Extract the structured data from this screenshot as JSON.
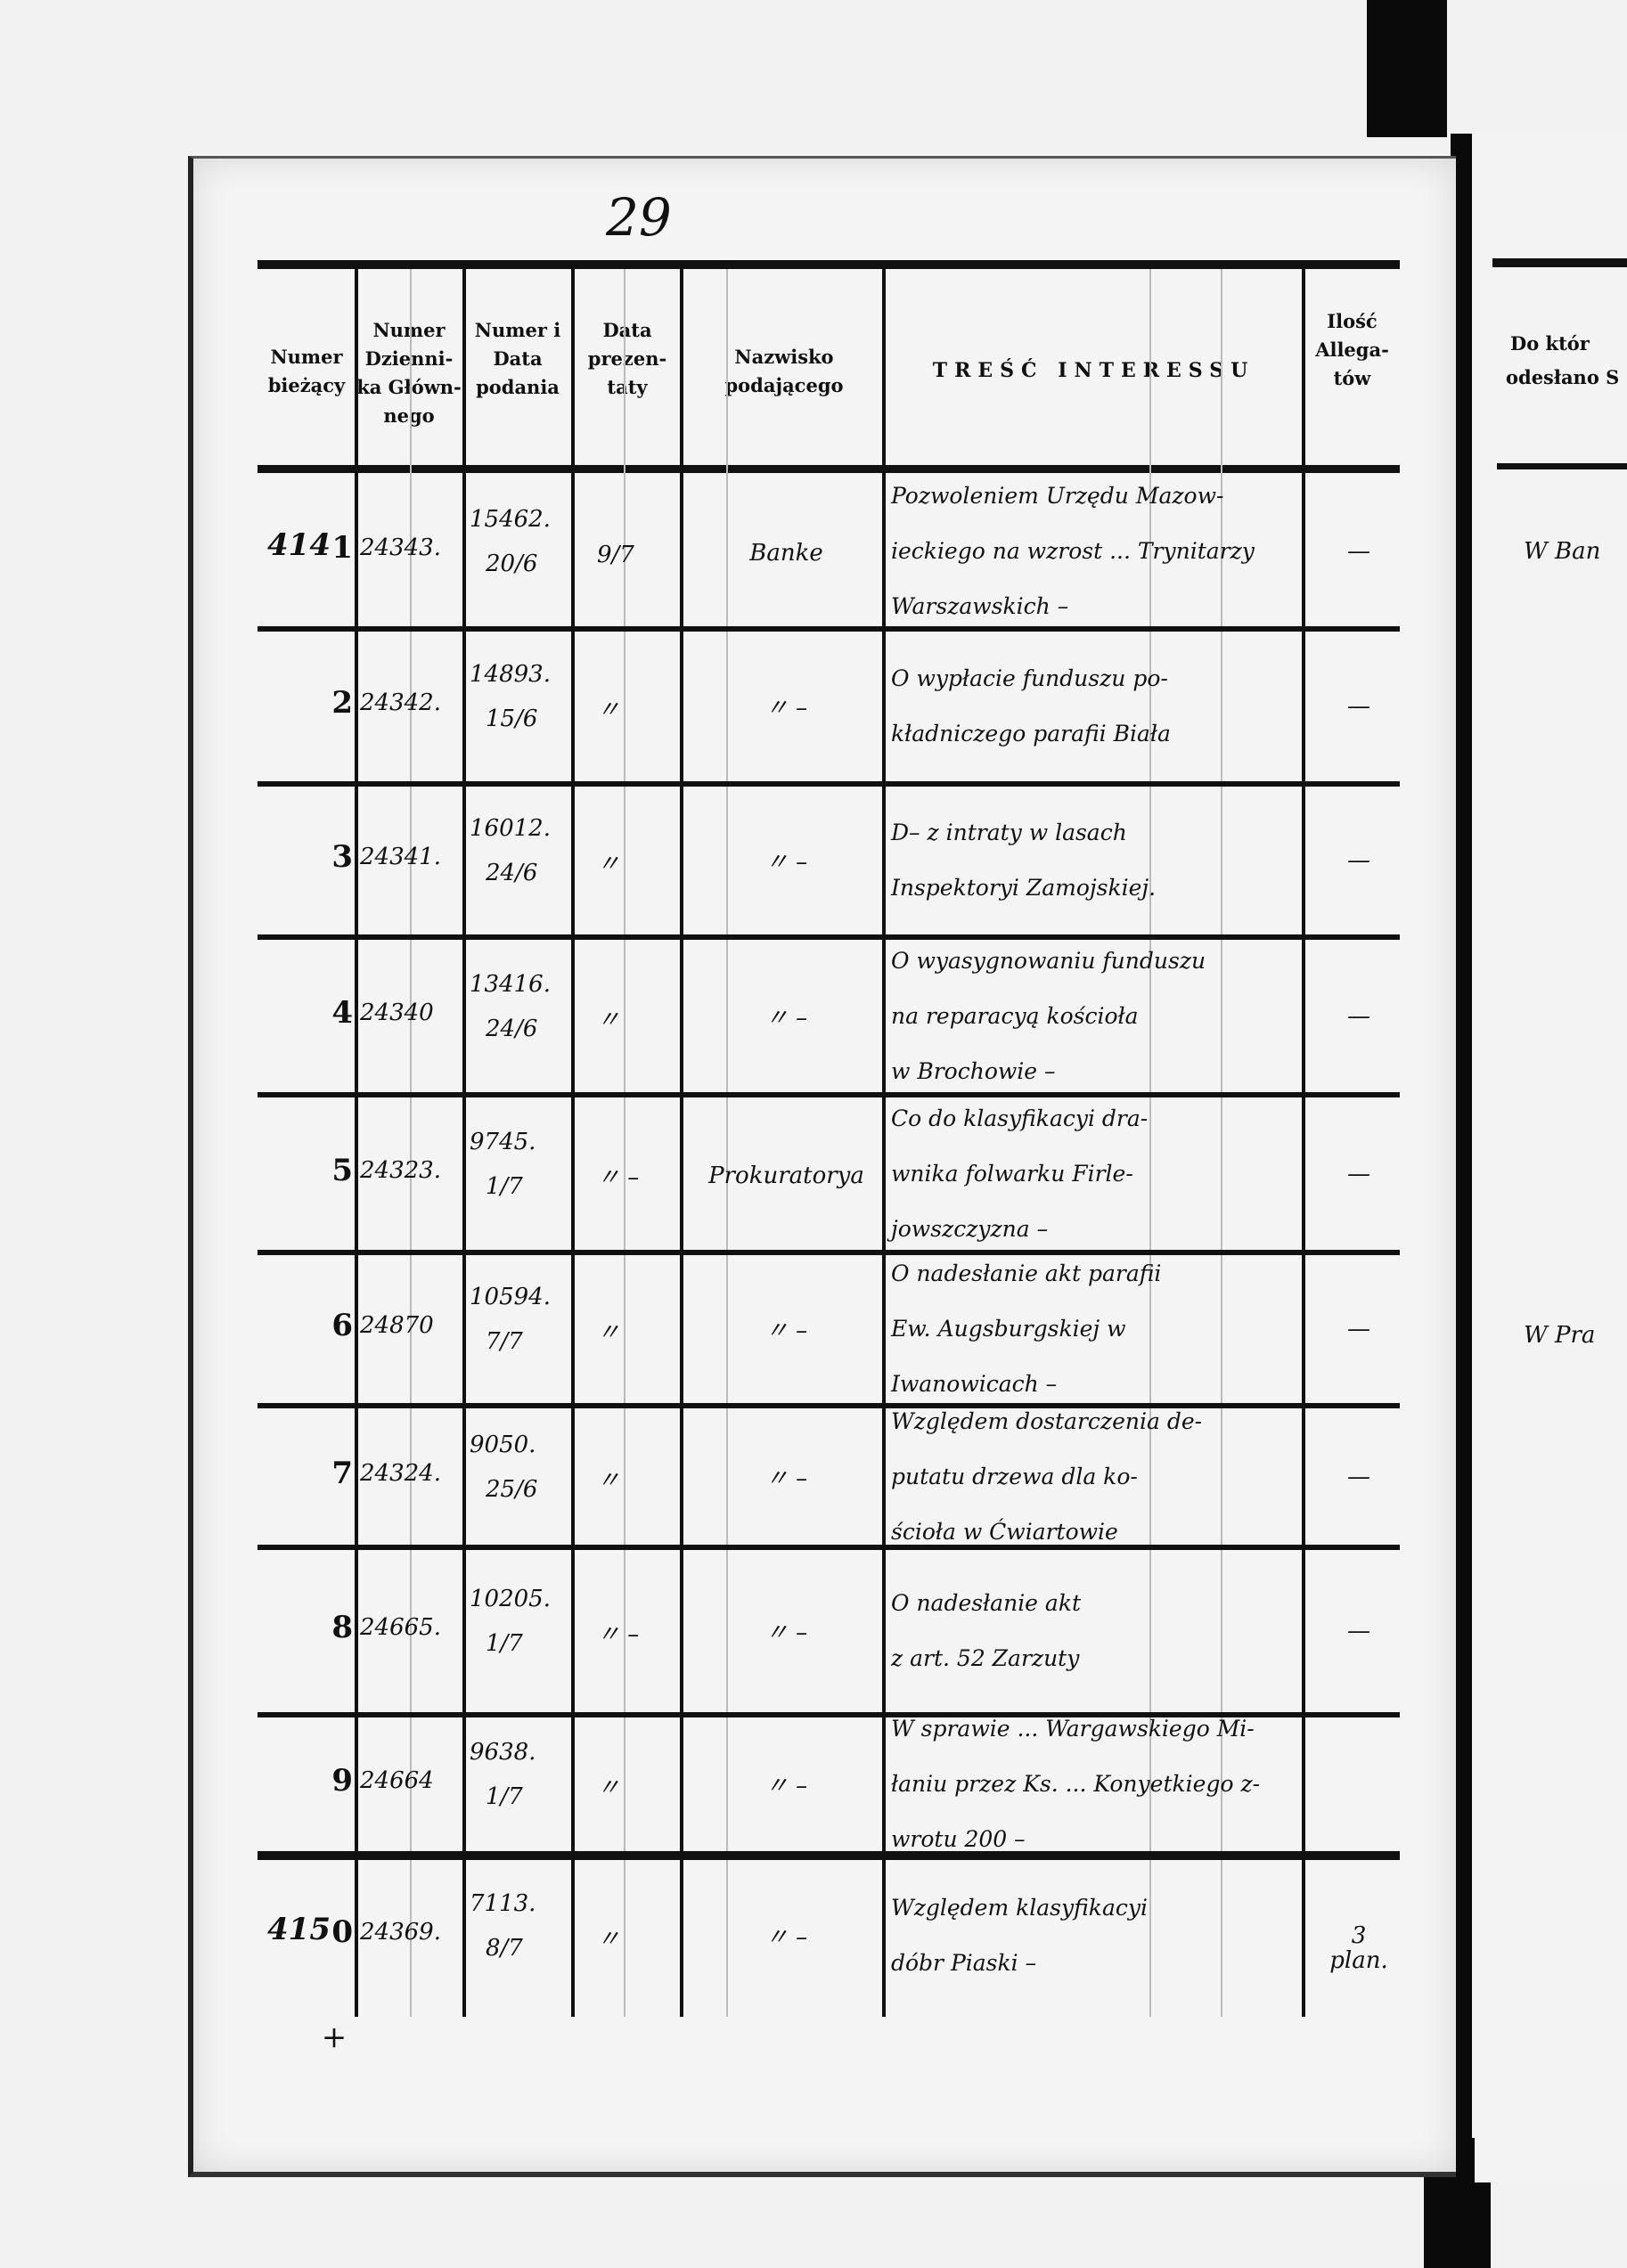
{
  "page_number": "29",
  "headers": {
    "numer_biezacy": "Numer bieżący",
    "numer_dziennika": "Numer Dzienni- ka Główn- nego",
    "numer_data": "Numer i Data podania",
    "data_prezentaty": "Data prezen- taty",
    "nazwisko": "Nazwisko podającego",
    "tresc": "TREŚĆ INTERESSU",
    "allegatow": "Ilość Allega- tów"
  },
  "right_page": {
    "header_line1": "Do któr",
    "header_line2": "odesłano S",
    "notes": [
      "W Ban",
      "W Pra"
    ]
  },
  "rows": [
    {
      "margin": "414",
      "nr": "1",
      "dziennik": "24343.",
      "numer_data": "15462.",
      "data_podania": "20/6",
      "prezentaty": "9/7",
      "nazwisko": "Banke",
      "tresc": [
        "Pozwoleniem Urzędu Mazow-",
        "ieckiego na wzrost ... Trynitarzy",
        "Warszawskich –"
      ],
      "allegatow": "—"
    },
    {
      "margin": "",
      "nr": "2",
      "dziennik": "24342.",
      "numer_data": "14893.",
      "data_podania": "15/6",
      "prezentaty": "〃",
      "nazwisko": "〃 –",
      "tresc": [
        "O wypłacie funduszu po-",
        "kładniczego parafii Biała"
      ],
      "allegatow": "—"
    },
    {
      "margin": "",
      "nr": "3",
      "dziennik": "24341.",
      "numer_data": "16012.",
      "data_podania": "24/6",
      "prezentaty": "〃",
      "nazwisko": "〃 –",
      "tresc": [
        "D– z intraty w lasach",
        "Inspektoryi Zamojskiej."
      ],
      "allegatow": "—"
    },
    {
      "margin": "",
      "nr": "4",
      "dziennik": "24340",
      "numer_data": "13416.",
      "data_podania": "24/6",
      "prezentaty": "〃",
      "nazwisko": "〃 –",
      "tresc": [
        "O wyasygnowaniu funduszu",
        "na reparacyą kościoła",
        "w Brochowie –"
      ],
      "allegatow": "—"
    },
    {
      "margin": "",
      "nr": "5",
      "dziennik": "24323.",
      "numer_data": "9745.",
      "data_podania": "1/7",
      "prezentaty": "〃 –",
      "nazwisko": "Prokuratorya",
      "tresc": [
        "Co do klasyfikacyi dra-",
        "wnika folwarku Firle-",
        "jowszczyzna –"
      ],
      "allegatow": "—"
    },
    {
      "margin": "",
      "nr": "6",
      "dziennik": "24870",
      "numer_data": "10594.",
      "data_podania": "7/7",
      "prezentaty": "〃",
      "nazwisko": "〃 –",
      "tresc": [
        "O nadesłanie akt parafii",
        "Ew. Augsburgskiej w",
        "Iwanowicach –"
      ],
      "allegatow": "—"
    },
    {
      "margin": "",
      "nr": "7",
      "dziennik": "24324.",
      "numer_data": "9050.",
      "data_podania": "25/6",
      "prezentaty": "〃",
      "nazwisko": "〃 –",
      "tresc": [
        "Względem dostarczenia de-",
        "putatu drzewa dla ko-",
        "ścioła w Ćwiartowie"
      ],
      "allegatow": "—"
    },
    {
      "margin": "",
      "nr": "8",
      "dziennik": "24665.",
      "numer_data": "10205.",
      "data_podania": "1/7",
      "prezentaty": "〃 –",
      "nazwisko": "〃 –",
      "tresc": [
        "O nadesłanie akt",
        "z art. 52 Zarzuty"
      ],
      "allegatow": "—"
    },
    {
      "margin": "",
      "nr": "9",
      "dziennik": "24664",
      "numer_data": "9638.",
      "data_podania": "1/7",
      "prezentaty": "〃",
      "nazwisko": "〃 –",
      "tresc": [
        "W sprawie ... Wargawskiego Mi-",
        "łaniu przez Ks. ... Konyetkiego z-",
        "wrotu 200 –"
      ],
      "allegatow": ""
    },
    {
      "margin": "415",
      "nr": "0",
      "dziennik": "24369.",
      "numer_data": "7113.",
      "data_podania": "8/7",
      "prezentaty": "〃",
      "nazwisko": "〃 –",
      "tresc": [
        "Względem klasyfikacyi",
        "dóbr Piaski –"
      ],
      "allegatow": "3 plan.",
      "mark": "+"
    }
  ]
}
